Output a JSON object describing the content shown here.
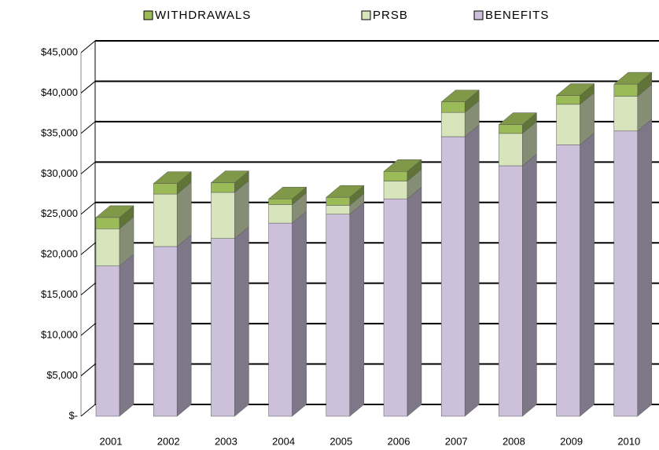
{
  "chart_data": {
    "type": "bar3d_stacked",
    "categories": [
      "2001",
      "2002",
      "2003",
      "2004",
      "2005",
      "2006",
      "2007",
      "2008",
      "2009",
      "2010"
    ],
    "series": [
      {
        "name": "BENEFITS",
        "color": "#ccc0da",
        "values": [
          18600,
          21000,
          22000,
          23900,
          25000,
          26900,
          34600,
          31000,
          33600,
          35300
        ]
      },
      {
        "name": "PRSB",
        "color": "#d8e4bc",
        "values": [
          4600,
          6500,
          5700,
          2300,
          1100,
          2200,
          3000,
          4000,
          5000,
          4300
        ]
      },
      {
        "name": "WITHDRAWALS",
        "color": "#9bbb59",
        "values": [
          1400,
          1300,
          1200,
          700,
          1000,
          1200,
          1300,
          1100,
          1100,
          1500
        ]
      }
    ],
    "legend_order": [
      "WITHDRAWALS",
      "PRSB",
      "BENEFITS"
    ],
    "ylim": [
      0,
      45000
    ],
    "yticks": [
      {
        "value": 0,
        "label": "$-"
      },
      {
        "value": 5000,
        "label": "$5,000"
      },
      {
        "value": 10000,
        "label": "$10,000"
      },
      {
        "value": 15000,
        "label": "$15,000"
      },
      {
        "value": 20000,
        "label": "$20,000"
      },
      {
        "value": 25000,
        "label": "$25,000"
      },
      {
        "value": 30000,
        "label": "$30,000"
      },
      {
        "value": 35000,
        "label": "$35,000"
      },
      {
        "value": 40000,
        "label": "$40,000"
      },
      {
        "value": 45000,
        "label": "$45,000"
      }
    ],
    "grid": true
  }
}
